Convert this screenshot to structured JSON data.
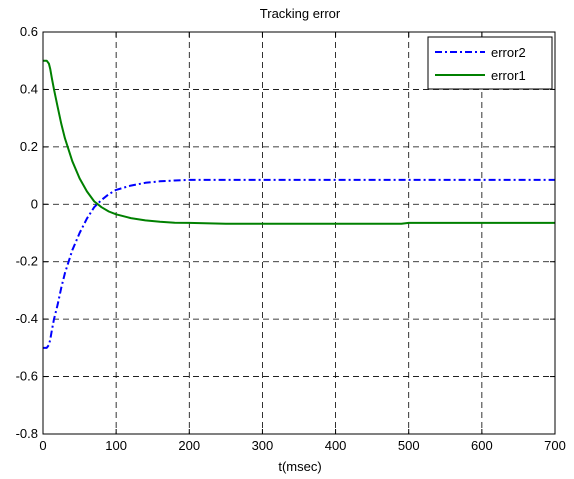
{
  "chart_data": {
    "type": "line",
    "title": "Tracking error",
    "xlabel": "t(msec)",
    "ylabel": "",
    "xlim": [
      0,
      700
    ],
    "ylim": [
      -0.8,
      0.6
    ],
    "xticks": [
      0,
      100,
      200,
      300,
      400,
      500,
      600,
      700
    ],
    "yticks": [
      -0.8,
      -0.6,
      -0.4,
      -0.2,
      0,
      0.2,
      0.4,
      0.6
    ],
    "xtick_labels": [
      "0",
      "100",
      "200",
      "300",
      "400",
      "500",
      "600",
      "700"
    ],
    "ytick_labels": [
      "-0.8",
      "-0.6",
      "-0.4",
      "-0.2",
      "0",
      "0.2",
      "0.4",
      "0.6"
    ],
    "grid": true,
    "grid_style": "dashed",
    "legend_position": "top-right",
    "series": [
      {
        "name": "error2",
        "color": "#0000ff",
        "style": "dash-dot",
        "x": [
          0,
          5,
          8,
          10,
          12,
          15,
          20,
          25,
          30,
          35,
          40,
          50,
          60,
          70,
          80,
          90,
          100,
          120,
          140,
          160,
          180,
          200,
          250,
          300,
          400,
          500,
          600,
          700
        ],
        "y": [
          -0.5,
          -0.5,
          -0.49,
          -0.47,
          -0.44,
          -0.4,
          -0.35,
          -0.29,
          -0.24,
          -0.2,
          -0.16,
          -0.1,
          -0.05,
          -0.01,
          0.015,
          0.035,
          0.05,
          0.065,
          0.075,
          0.08,
          0.083,
          0.085,
          0.085,
          0.085,
          0.085,
          0.085,
          0.085,
          0.085
        ]
      },
      {
        "name": "error1",
        "color": "#008000",
        "style": "solid",
        "x": [
          0,
          5,
          8,
          10,
          12,
          15,
          20,
          25,
          30,
          35,
          40,
          50,
          60,
          70,
          80,
          90,
          100,
          120,
          140,
          160,
          180,
          200,
          250,
          300,
          400,
          490,
          500,
          600,
          700
        ],
        "y": [
          0.5,
          0.5,
          0.49,
          0.47,
          0.44,
          0.4,
          0.34,
          0.28,
          0.23,
          0.19,
          0.15,
          0.09,
          0.045,
          0.01,
          -0.01,
          -0.025,
          -0.035,
          -0.048,
          -0.056,
          -0.061,
          -0.064,
          -0.065,
          -0.068,
          -0.068,
          -0.068,
          -0.068,
          -0.065,
          -0.065,
          -0.065
        ]
      }
    ]
  }
}
